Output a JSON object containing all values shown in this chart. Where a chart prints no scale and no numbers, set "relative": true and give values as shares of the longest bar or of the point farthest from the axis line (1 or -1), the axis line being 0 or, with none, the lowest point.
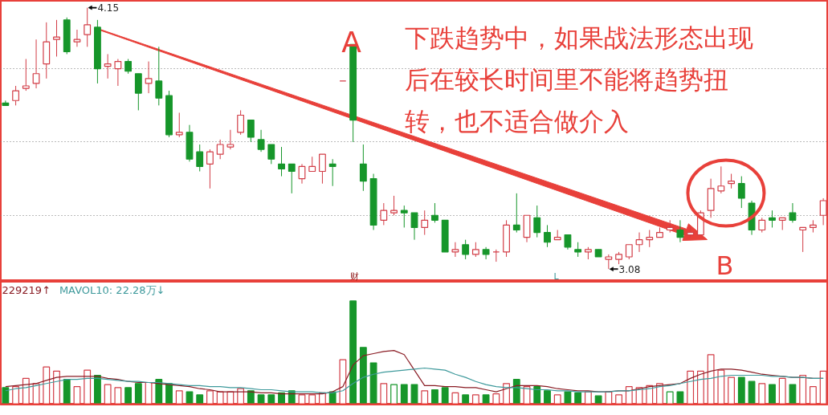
{
  "chart_data": [
    {
      "type": "candlestick",
      "categories": [
        null,
        null,
        null,
        null,
        null,
        null,
        null,
        null,
        null,
        null,
        null,
        null,
        null,
        null,
        null,
        null,
        null,
        null,
        null,
        null,
        null,
        null,
        null,
        null,
        null,
        null,
        null,
        null,
        null,
        null,
        null,
        null,
        null,
        null,
        null,
        null,
        null,
        null,
        null,
        null,
        null,
        null,
        null,
        null,
        null,
        null,
        null,
        null,
        null,
        null,
        null,
        null,
        null,
        null,
        null,
        null,
        null,
        null,
        null,
        null,
        null,
        null,
        null,
        null,
        null,
        null,
        null,
        null,
        null,
        null,
        null,
        null,
        null,
        null,
        null,
        null,
        null,
        null,
        null,
        null,
        null
      ],
      "ohlc": [
        [
          3.76,
          3.77,
          3.75,
          3.75
        ],
        [
          3.77,
          3.83,
          3.75,
          3.81
        ],
        [
          3.82,
          3.94,
          3.81,
          3.83
        ],
        [
          3.84,
          4.02,
          3.82,
          3.88
        ],
        [
          3.92,
          4.09,
          3.86,
          4.01
        ],
        [
          4.02,
          4.1,
          3.95,
          4.03
        ],
        [
          4.1,
          4.11,
          3.96,
          3.97
        ],
        [
          4.01,
          4.06,
          3.99,
          4.02
        ],
        [
          4.04,
          4.15,
          3.99,
          4.08
        ],
        [
          4.07,
          4.1,
          3.84,
          3.9
        ],
        [
          3.91,
          3.96,
          3.86,
          3.92
        ],
        [
          3.9,
          3.94,
          3.83,
          3.93
        ],
        [
          3.93,
          3.94,
          3.88,
          3.89
        ],
        [
          3.88,
          3.88,
          3.73,
          3.8
        ],
        [
          3.84,
          3.93,
          3.8,
          3.86
        ],
        [
          3.85,
          3.99,
          3.75,
          3.78
        ],
        [
          3.79,
          3.81,
          3.62,
          3.63
        ],
        [
          3.63,
          3.72,
          3.62,
          3.64
        ],
        [
          3.64,
          3.67,
          3.52,
          3.53
        ],
        [
          3.56,
          3.59,
          3.48,
          3.5
        ],
        [
          3.51,
          3.57,
          3.41,
          3.56
        ],
        [
          3.55,
          3.61,
          3.53,
          3.59
        ],
        [
          3.58,
          3.65,
          3.57,
          3.59
        ],
        [
          3.64,
          3.73,
          3.63,
          3.71
        ],
        [
          3.69,
          3.69,
          3.6,
          3.62
        ],
        [
          3.61,
          3.65,
          3.56,
          3.57
        ],
        [
          3.59,
          3.59,
          3.51,
          3.53
        ],
        [
          3.51,
          3.58,
          3.46,
          3.49
        ],
        [
          3.51,
          3.51,
          3.39,
          3.48
        ],
        [
          3.45,
          3.51,
          3.43,
          3.5
        ],
        [
          3.48,
          3.54,
          3.48,
          3.5
        ],
        [
          3.48,
          3.55,
          3.43,
          3.55
        ],
        [
          3.51,
          3.53,
          3.42,
          3.5
        ],
        [
          3.85,
          3.85,
          3.85,
          3.85
        ],
        [
          4.0,
          4.0,
          3.6,
          3.69
        ],
        [
          3.51,
          3.59,
          3.4,
          3.44
        ],
        [
          3.45,
          3.47,
          3.24,
          3.26
        ],
        [
          3.28,
          3.35,
          3.26,
          3.32
        ],
        [
          3.31,
          3.38,
          3.3,
          3.32
        ],
        [
          3.32,
          3.34,
          3.25,
          3.31
        ],
        [
          3.31,
          3.31,
          3.2,
          3.25
        ],
        [
          3.25,
          3.32,
          3.22,
          3.28
        ],
        [
          3.3,
          3.35,
          3.27,
          3.28
        ],
        [
          3.28,
          3.28,
          3.15,
          3.15
        ],
        [
          3.15,
          3.19,
          3.13,
          3.16
        ],
        [
          3.18,
          3.2,
          3.12,
          3.14
        ],
        [
          3.14,
          3.19,
          3.13,
          3.16
        ],
        [
          3.16,
          3.17,
          3.12,
          3.14
        ],
        [
          3.15,
          3.16,
          3.11,
          3.15
        ],
        [
          3.15,
          3.28,
          3.13,
          3.26
        ],
        [
          3.26,
          3.39,
          3.23,
          3.24
        ],
        [
          3.21,
          3.3,
          3.19,
          3.3
        ],
        [
          3.29,
          3.34,
          3.21,
          3.23
        ],
        [
          3.23,
          3.26,
          3.17,
          3.19
        ],
        [
          3.2,
          3.24,
          3.2,
          3.21
        ],
        [
          3.22,
          3.22,
          3.16,
          3.17
        ],
        [
          3.16,
          3.19,
          3.13,
          3.15
        ],
        [
          3.15,
          3.17,
          3.12,
          3.16
        ],
        [
          3.16,
          3.16,
          3.13,
          3.13
        ],
        [
          3.12,
          3.14,
          3.08,
          3.13
        ],
        [
          3.12,
          3.15,
          3.1,
          3.14
        ],
        [
          3.13,
          3.18,
          3.12,
          3.18
        ],
        [
          3.18,
          3.23,
          3.15,
          3.2
        ],
        [
          3.2,
          3.24,
          3.17,
          3.21
        ],
        [
          3.21,
          3.25,
          3.21,
          3.23
        ],
        [
          3.24,
          3.28,
          3.23,
          3.25
        ],
        [
          3.24,
          3.28,
          3.19,
          3.21
        ],
        [
          3.22,
          3.25,
          3.21,
          3.23
        ],
        [
          3.22,
          3.32,
          3.22,
          3.31
        ],
        [
          3.32,
          3.45,
          3.29,
          3.41
        ],
        [
          3.4,
          3.5,
          3.39,
          3.42
        ],
        [
          3.43,
          3.47,
          3.41,
          3.44
        ],
        [
          3.43,
          3.46,
          3.33,
          3.37
        ],
        [
          3.35,
          3.36,
          3.22,
          3.24
        ],
        [
          3.24,
          3.29,
          3.23,
          3.28
        ],
        [
          3.29,
          3.32,
          3.25,
          3.28
        ],
        [
          3.28,
          3.29,
          3.24,
          3.29
        ],
        [
          3.31,
          3.35,
          3.27,
          3.28
        ],
        [
          3.24,
          3.25,
          3.15,
          3.25
        ],
        [
          3.25,
          3.28,
          3.23,
          3.26
        ],
        [
          3.3,
          3.37,
          3.26,
          3.36
        ]
      ],
      "colors": [
        "#16962a",
        "#d23c46",
        "#d23c46",
        "#d23c46",
        "#d23c46",
        "#d23c46",
        "#16962a",
        "#d23c46",
        "#d23c46",
        "#16962a",
        "#d23c46",
        "#d23c46",
        "#16962a",
        "#16962a",
        "#d23c46",
        "#16962a",
        "#16962a",
        "#d23c46",
        "#16962a",
        "#16962a",
        "#d23c46",
        "#d23c46",
        "#d23c46",
        "#d23c46",
        "#16962a",
        "#16962a",
        "#16962a",
        "#16962a",
        "#16962a",
        "#d23c46",
        "#d23c46",
        "#d23c46",
        "#16962a",
        "#d23c46",
        "#16962a",
        "#16962a",
        "#16962a",
        "#d23c46",
        "#d23c46",
        "#16962a",
        "#16962a",
        "#d23c46",
        "#16962a",
        "#16962a",
        "#d23c46",
        "#16962a",
        "#d23c46",
        "#16962a",
        "#d23c46",
        "#d23c46",
        "#16962a",
        "#d23c46",
        "#16962a",
        "#16962a",
        "#d23c46",
        "#16962a",
        "#16962a",
        "#d23c46",
        "#16962a",
        "#d23c46",
        "#d23c46",
        "#d23c46",
        "#d23c46",
        "#d23c46",
        "#d23c46",
        "#d23c46",
        "#16962a",
        "#d23c46",
        "#d23c46",
        "#d23c46",
        "#d23c46",
        "#d23c46",
        "#16962a",
        "#16962a",
        "#d23c46",
        "#16962a",
        "#d23c46",
        "#16962a",
        "#d23c46",
        "#d23c46",
        "#d23c46"
      ],
      "yticks": [
        {
          "value": 3.3,
          "label": null
        },
        {
          "value": 3.6,
          "label": null
        },
        {
          "value": 3.9,
          "label": null
        }
      ],
      "grid": "y",
      "tick_labels": false,
      "annotations": [
        "A",
        "下跌趋势中，如果战法形态出现",
        "后在较长时间里不能将趋势扭",
        "转，也不适合做介入",
        "B",
        "财",
        "L",
        "4.15",
        "3.08"
      ]
    },
    {
      "type": "bar",
      "relative": true,
      "tick_labels": false,
      "categories": [
        null,
        null,
        null,
        null,
        null,
        null,
        null,
        null,
        null,
        null,
        null,
        null,
        null,
        null,
        null,
        null,
        null,
        null,
        null,
        null,
        null,
        null,
        null,
        null,
        null,
        null,
        null,
        null,
        null,
        null,
        null,
        null,
        null,
        null,
        null,
        null,
        null,
        null,
        null,
        null,
        null,
        null,
        null,
        null,
        null,
        null,
        null,
        null,
        null,
        null,
        null,
        null,
        null,
        null,
        null,
        null,
        null,
        null,
        null,
        null,
        null,
        null,
        null,
        null,
        null,
        null,
        null,
        null,
        null,
        null,
        null,
        null,
        null,
        null,
        null,
        null,
        null,
        null,
        null,
        null,
        null
      ],
      "series": [
        {
          "type": "bar",
          "values": [
            0.16,
            0.17,
            0.25,
            0.2,
            0.36,
            0.32,
            0.24,
            0.17,
            0.33,
            0.28,
            0.19,
            0.16,
            0.16,
            0.2,
            0.21,
            0.24,
            0.2,
            0.13,
            0.12,
            0.09,
            0.13,
            0.12,
            0.12,
            0.15,
            0.13,
            0.09,
            0.09,
            0.11,
            0.13,
            0.09,
            0.09,
            0.11,
            0.12,
            0.43,
            1,
            0.55,
            0.4,
            0.2,
            0.19,
            0.19,
            0.19,
            0.13,
            0.14,
            0.16,
            0.11,
            0.09,
            0.09,
            0.09,
            0.1,
            0.2,
            0.24,
            0.17,
            0.17,
            0.13,
            0.09,
            0.12,
            0.11,
            0.12,
            0.08,
            0.12,
            0.09,
            0.17,
            0.16,
            0.18,
            0.2,
            0.12,
            0.12,
            0.32,
            0.32,
            0.48,
            0.33,
            0.26,
            0.26,
            0.22,
            0.2,
            0.19,
            0.25,
            0.19,
            0.28,
            0.17,
            0.32
          ],
          "colors": [
            "#16962a",
            "#d23c46",
            "#d23c46",
            "#d23c46",
            "#d23c46",
            "#d23c46",
            "#16962a",
            "#d23c46",
            "#d23c46",
            "#16962a",
            "#d23c46",
            "#d23c46",
            "#16962a",
            "#16962a",
            "#d23c46",
            "#16962a",
            "#16962a",
            "#d23c46",
            "#16962a",
            "#16962a",
            "#d23c46",
            "#d23c46",
            "#d23c46",
            "#d23c46",
            "#16962a",
            "#16962a",
            "#16962a",
            "#16962a",
            "#16962a",
            "#d23c46",
            "#d23c46",
            "#d23c46",
            "#16962a",
            "#d23c46",
            "#16962a",
            "#16962a",
            "#16962a",
            "#d23c46",
            "#16962a",
            "#16962a",
            "#16962a",
            "#d23c46",
            "#16962a",
            "#16962a",
            "#d23c46",
            "#16962a",
            "#d23c46",
            "#16962a",
            "#d23c46",
            "#d23c46",
            "#16962a",
            "#d23c46",
            "#16962a",
            "#16962a",
            "#d23c46",
            "#16962a",
            "#16962a",
            "#d23c46",
            "#16962a",
            "#d23c46",
            "#d23c46",
            "#d23c46",
            "#d23c46",
            "#d23c46",
            "#d23c46",
            "#16962a",
            "#16962a",
            "#d23c46",
            "#d23c46",
            "#d23c46",
            "#d23c46",
            "#d23c46",
            "#16962a",
            "#16962a",
            "#d23c46",
            "#16962a",
            "#d23c46",
            "#16962a",
            "#d23c46",
            "#d23c46",
            "#d23c46"
          ]
        },
        {
          "type": "line",
          "name": "229219↑",
          "color": "#8a1c24",
          "values": [
            0.17,
            0.18,
            0.19,
            0.2,
            0.23,
            0.26,
            0.27,
            0.27,
            0.27,
            0.27,
            0.25,
            0.24,
            0.22,
            0.21,
            0.21,
            0.2,
            0.19,
            0.18,
            0.17,
            0.15,
            0.14,
            0.12,
            0.12,
            0.12,
            0.12,
            0.11,
            0.11,
            0.1,
            0.1,
            0.1,
            0.1,
            0.1,
            0.12,
            0.17,
            0.38,
            0.47,
            0.49,
            0.51,
            0.52,
            0.48,
            0.33,
            0.18,
            0.18,
            0.17,
            0.17,
            0.16,
            0.16,
            0.14,
            0.12,
            0.15,
            0.18,
            0.18,
            0.18,
            0.17,
            0.15,
            0.14,
            0.13,
            0.13,
            0.12,
            0.12,
            0.13,
            0.13,
            0.15,
            0.17,
            0.18,
            0.19,
            0.2,
            0.25,
            0.29,
            0.32,
            0.34,
            0.34,
            0.33,
            0.31,
            0.29,
            0.28,
            0.27,
            0.26,
            0.26,
            0.25,
            0.25
          ]
        },
        {
          "type": "line",
          "name": "MAVOL10: 22.28万↓",
          "color": "#3f9a9c",
          "values": [
            0.13,
            0.15,
            0.16,
            0.18,
            0.2,
            0.22,
            0.24,
            0.24,
            0.25,
            0.25,
            0.24,
            0.23,
            0.22,
            0.22,
            0.21,
            0.21,
            0.2,
            0.19,
            0.18,
            0.18,
            0.17,
            0.17,
            0.16,
            0.16,
            0.15,
            0.14,
            0.14,
            0.13,
            0.12,
            0.12,
            0.12,
            0.11,
            0.11,
            0.13,
            0.2,
            0.26,
            0.29,
            0.31,
            0.32,
            0.33,
            0.34,
            0.35,
            0.34,
            0.33,
            0.29,
            0.26,
            0.22,
            0.19,
            0.17,
            0.16,
            0.16,
            0.15,
            0.14,
            0.14,
            0.13,
            0.13,
            0.12,
            0.12,
            0.12,
            0.12,
            0.13,
            0.13,
            0.14,
            0.15,
            0.17,
            0.18,
            0.2,
            0.22,
            0.24,
            0.25,
            0.27,
            0.28,
            0.28,
            0.28,
            0.28,
            0.27,
            0.27,
            0.26,
            0.26,
            0.25,
            0.25
          ]
        }
      ]
    }
  ]
}
